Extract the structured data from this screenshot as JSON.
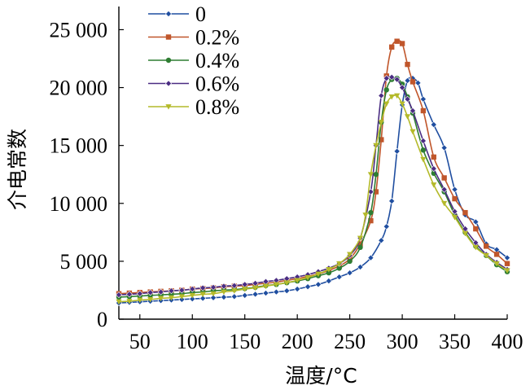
{
  "chart_data": {
    "type": "line",
    "xlabel": "温度/°C",
    "ylabel": "介电常数",
    "xlim": [
      30,
      400
    ],
    "ylim": [
      0,
      27000
    ],
    "xticks": [
      50,
      100,
      150,
      200,
      250,
      300,
      350,
      400
    ],
    "xtick_labels": [
      "50",
      "100",
      "150",
      "200",
      "250",
      "300",
      "350",
      "400"
    ],
    "yticks": [
      0,
      5000,
      10000,
      15000,
      20000,
      25000
    ],
    "ytick_labels": [
      "0",
      "5 000",
      "10 000",
      "15 000",
      "20 000",
      "25 000"
    ],
    "grid": false,
    "legend_position": "top-left",
    "series": [
      {
        "name": "0",
        "color": "#1f4ea0",
        "marker": "diamond",
        "x": [
          30,
          40,
          50,
          60,
          70,
          80,
          90,
          100,
          110,
          120,
          130,
          140,
          150,
          160,
          170,
          180,
          190,
          200,
          210,
          220,
          230,
          240,
          250,
          260,
          270,
          280,
          285,
          290,
          295,
          300,
          305,
          310,
          315,
          320,
          330,
          340,
          350,
          360,
          370,
          380,
          390,
          400
        ],
        "y": [
          1400,
          1450,
          1500,
          1550,
          1600,
          1650,
          1700,
          1750,
          1800,
          1850,
          1900,
          1950,
          2050,
          2150,
          2250,
          2350,
          2450,
          2600,
          2800,
          3000,
          3300,
          3650,
          4000,
          4500,
          5300,
          6800,
          8000,
          10200,
          14500,
          18500,
          20600,
          20800,
          20400,
          19000,
          16800,
          14800,
          11200,
          9000,
          8400,
          6500,
          6000,
          5300
        ]
      },
      {
        "name": "0.2%",
        "color": "#c0562b",
        "marker": "square",
        "x": [
          30,
          40,
          50,
          60,
          70,
          80,
          90,
          100,
          110,
          120,
          130,
          140,
          150,
          160,
          170,
          180,
          190,
          200,
          210,
          220,
          230,
          240,
          250,
          260,
          270,
          275,
          280,
          285,
          290,
          295,
          300,
          305,
          310,
          320,
          330,
          340,
          350,
          360,
          370,
          380,
          390,
          400
        ],
        "y": [
          2200,
          2250,
          2300,
          2350,
          2400,
          2450,
          2500,
          2600,
          2650,
          2700,
          2800,
          2850,
          2900,
          3000,
          3100,
          3200,
          3350,
          3500,
          3700,
          3900,
          4200,
          4600,
          5200,
          6500,
          8500,
          11000,
          15500,
          21000,
          23500,
          24000,
          23800,
          22000,
          20500,
          18000,
          14000,
          12200,
          10400,
          9200,
          7800,
          6300,
          5600,
          4800
        ]
      },
      {
        "name": "0.4%",
        "color": "#2e7d32",
        "marker": "circle",
        "x": [
          30,
          40,
          50,
          60,
          70,
          80,
          90,
          100,
          110,
          120,
          130,
          140,
          150,
          160,
          170,
          180,
          190,
          200,
          210,
          220,
          230,
          240,
          250,
          260,
          270,
          275,
          280,
          285,
          290,
          295,
          300,
          305,
          310,
          320,
          330,
          340,
          350,
          360,
          370,
          380,
          390,
          400
        ],
        "y": [
          1900,
          1950,
          2000,
          2050,
          2100,
          2150,
          2200,
          2300,
          2350,
          2450,
          2500,
          2550,
          2650,
          2750,
          2900,
          3000,
          3150,
          3300,
          3500,
          3750,
          4000,
          4400,
          5000,
          6200,
          9200,
          12500,
          17000,
          19800,
          20700,
          20800,
          20300,
          19200,
          17800,
          14600,
          12600,
          11000,
          9000,
          7500,
          6300,
          5500,
          4700,
          4100
        ]
      },
      {
        "name": "0.6%",
        "color": "#4a2c82",
        "marker": "diamond",
        "x": [
          30,
          40,
          50,
          60,
          70,
          80,
          90,
          100,
          110,
          120,
          130,
          140,
          150,
          160,
          170,
          180,
          190,
          200,
          210,
          220,
          230,
          240,
          250,
          260,
          270,
          275,
          280,
          285,
          290,
          295,
          300,
          305,
          310,
          320,
          330,
          340,
          350,
          360,
          370,
          380,
          390,
          400
        ],
        "y": [
          2100,
          2150,
          2200,
          2300,
          2350,
          2450,
          2500,
          2600,
          2700,
          2750,
          2850,
          2900,
          3000,
          3100,
          3250,
          3350,
          3500,
          3650,
          3850,
          4100,
          4400,
          4800,
          5500,
          7000,
          11000,
          15000,
          19300,
          20800,
          20900,
          20700,
          20000,
          19000,
          18000,
          15400,
          13000,
          11200,
          9300,
          7800,
          6600,
          5600,
          4900,
          4300
        ]
      },
      {
        "name": "0.8%",
        "color": "#b4ba2a",
        "marker": "triangle-down",
        "x": [
          30,
          40,
          50,
          60,
          70,
          80,
          90,
          100,
          110,
          120,
          130,
          140,
          150,
          160,
          170,
          180,
          190,
          200,
          210,
          220,
          230,
          240,
          250,
          260,
          265,
          270,
          275,
          280,
          285,
          290,
          295,
          300,
          305,
          310,
          320,
          330,
          340,
          350,
          360,
          370,
          380,
          390,
          400
        ],
        "y": [
          1500,
          1550,
          1650,
          1700,
          1800,
          1850,
          1950,
          2050,
          2150,
          2200,
          2350,
          2450,
          2600,
          2700,
          2850,
          3000,
          3150,
          3350,
          3600,
          3900,
          4300,
          4800,
          5600,
          7000,
          9000,
          12500,
          15000,
          17000,
          18600,
          19200,
          19300,
          18600,
          17500,
          16200,
          13800,
          11600,
          10000,
          8800,
          7400,
          6200,
          5500,
          4800,
          4200
        ]
      }
    ]
  }
}
